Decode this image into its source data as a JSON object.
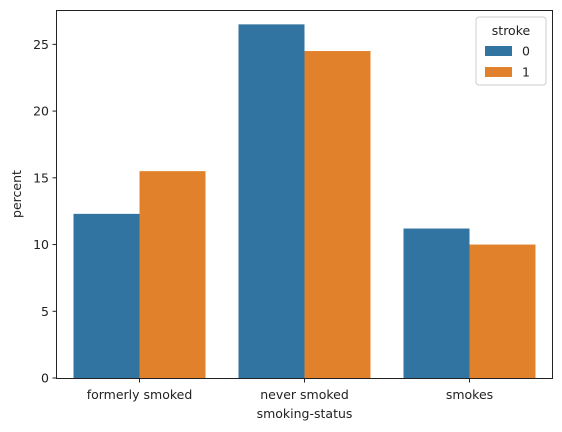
{
  "chart_data": {
    "type": "bar",
    "title": "",
    "xlabel": "smoking-status",
    "ylabel": "percent",
    "categories": [
      "formerly smoked",
      "never smoked",
      "smokes"
    ],
    "series": [
      {
        "name": "0",
        "values": [
          12.3,
          26.5,
          11.2
        ],
        "color": "#3274a1"
      },
      {
        "name": "1",
        "values": [
          15.5,
          24.5,
          10.0
        ],
        "color": "#e1812c"
      }
    ],
    "ylim": [
      0,
      27.5
    ],
    "yticks": [
      "0",
      "5",
      "10",
      "15",
      "20",
      "25"
    ],
    "ytick_values": [
      0,
      5,
      10,
      15,
      20,
      25
    ],
    "grid": false,
    "legend": {
      "title": "stroke",
      "placement": "top-right"
    }
  }
}
